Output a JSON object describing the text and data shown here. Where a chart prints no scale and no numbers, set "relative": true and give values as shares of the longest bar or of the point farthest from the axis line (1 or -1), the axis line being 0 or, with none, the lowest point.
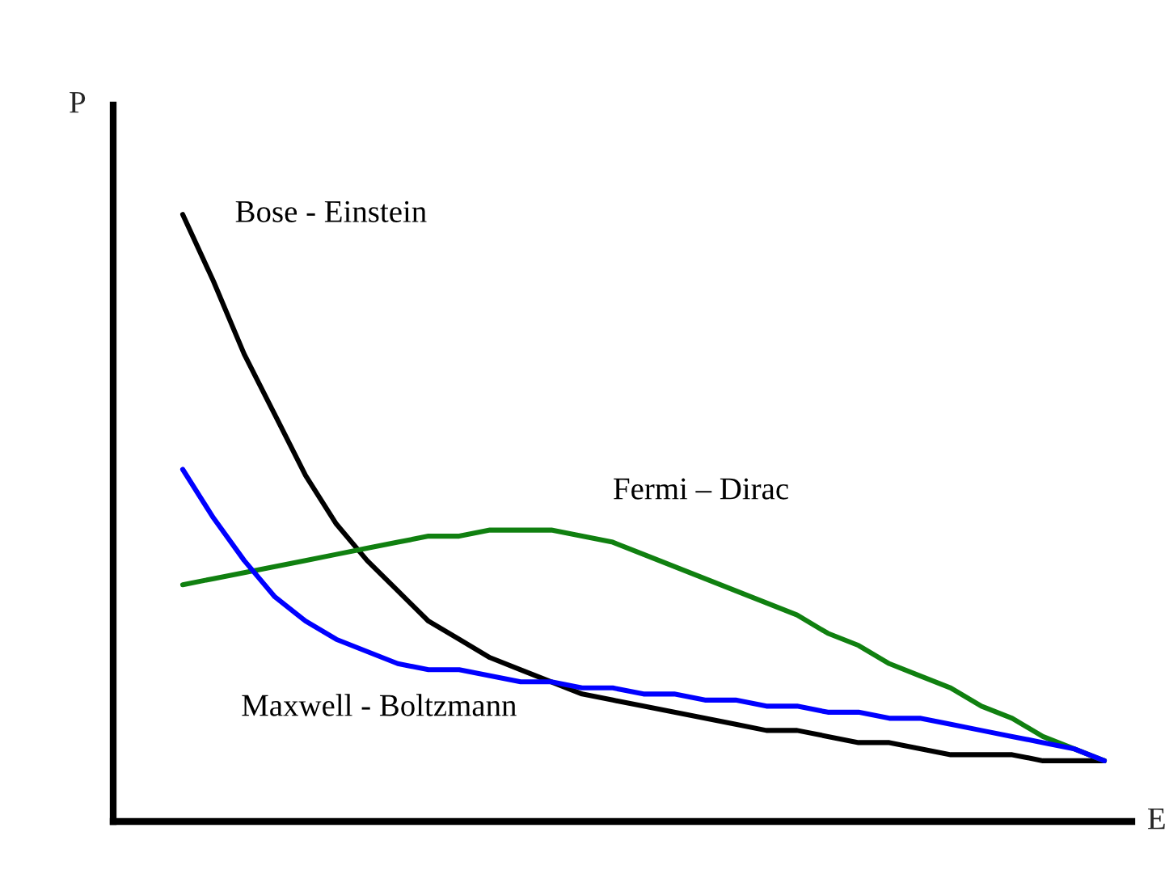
{
  "chart_data": {
    "type": "line",
    "relative": true,
    "xlabel": "E",
    "ylabel": "P",
    "categories": [
      null,
      null,
      null,
      null,
      null,
      null,
      null,
      null,
      null,
      null,
      null,
      null,
      null,
      null,
      null,
      null,
      null,
      null,
      null,
      null,
      null,
      null,
      null,
      null,
      null,
      null,
      null,
      null,
      null,
      null,
      null
    ],
    "series": [
      {
        "name": "Bose - Einstein",
        "color": "#000000",
        "values": [
          1.0,
          0.89,
          0.77,
          0.67,
          0.57,
          0.49,
          0.43,
          0.38,
          0.33,
          0.3,
          0.27,
          0.25,
          0.23,
          0.21,
          0.2,
          0.19,
          0.18,
          0.17,
          0.16,
          0.15,
          0.15,
          0.14,
          0.13,
          0.13,
          0.12,
          0.11,
          0.11,
          0.11,
          0.1,
          0.1,
          0.1
        ]
      },
      {
        "name": "Fermi – Dirac",
        "color": "#108010",
        "values": [
          0.39,
          0.4,
          0.41,
          0.42,
          0.43,
          0.44,
          0.45,
          0.46,
          0.47,
          0.47,
          0.48,
          0.48,
          0.48,
          0.47,
          0.46,
          0.44,
          0.42,
          0.4,
          0.38,
          0.36,
          0.34,
          0.31,
          0.29,
          0.26,
          0.24,
          0.22,
          0.19,
          0.17,
          0.14,
          0.12,
          0.1
        ]
      },
      {
        "name": "Maxwell - Boltzmann",
        "color": "#0000ff",
        "values": [
          0.58,
          0.5,
          0.43,
          0.37,
          0.33,
          0.3,
          0.28,
          0.26,
          0.25,
          0.25,
          0.24,
          0.23,
          0.23,
          0.22,
          0.22,
          0.21,
          0.21,
          0.2,
          0.2,
          0.19,
          0.19,
          0.18,
          0.18,
          0.17,
          0.17,
          0.16,
          0.15,
          0.14,
          0.13,
          0.12,
          0.1
        ]
      }
    ]
  }
}
